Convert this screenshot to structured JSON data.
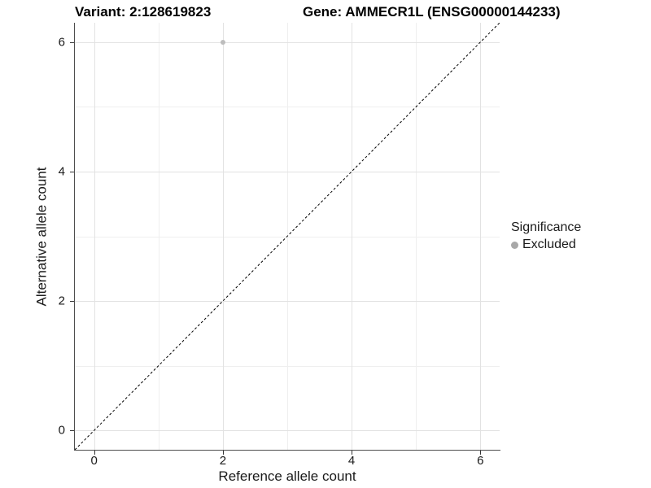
{
  "header": {
    "variant_title": "Variant: 2:128619823",
    "gene_title": "Gene: AMMECR1L (ENSG00000144233)"
  },
  "chart_data": {
    "type": "scatter",
    "title_left": "Variant: 2:128619823",
    "title_right": "Gene: AMMECR1L (ENSG00000144233)",
    "xlabel": "Reference allele count",
    "ylabel": "Alternative allele count",
    "xlim": [
      -0.3,
      6.3
    ],
    "ylim": [
      -0.3,
      6.3
    ],
    "x_ticks": [
      0,
      2,
      4,
      6
    ],
    "y_ticks": [
      0,
      2,
      4,
      6
    ],
    "x_minor_gridlines": [
      1,
      3,
      5
    ],
    "y_minor_gridlines": [
      1,
      3,
      5
    ],
    "grid": true,
    "points": [
      {
        "x": 2,
        "y": 6,
        "significance": "Excluded"
      }
    ],
    "identity_line": {
      "slope": 1,
      "intercept": 0,
      "style": "dashed",
      "color": "#000000"
    },
    "legend": {
      "title": "Significance",
      "position": "right",
      "items": [
        {
          "label": "Excluded",
          "color": "#a8a8a8"
        }
      ]
    },
    "colors": {
      "point": "#bdbdbd",
      "grid_major": "#e2e2e2",
      "grid_minor": "#efefef",
      "axis_line": "#4d4d4d",
      "dashed_line": "#000000"
    }
  }
}
